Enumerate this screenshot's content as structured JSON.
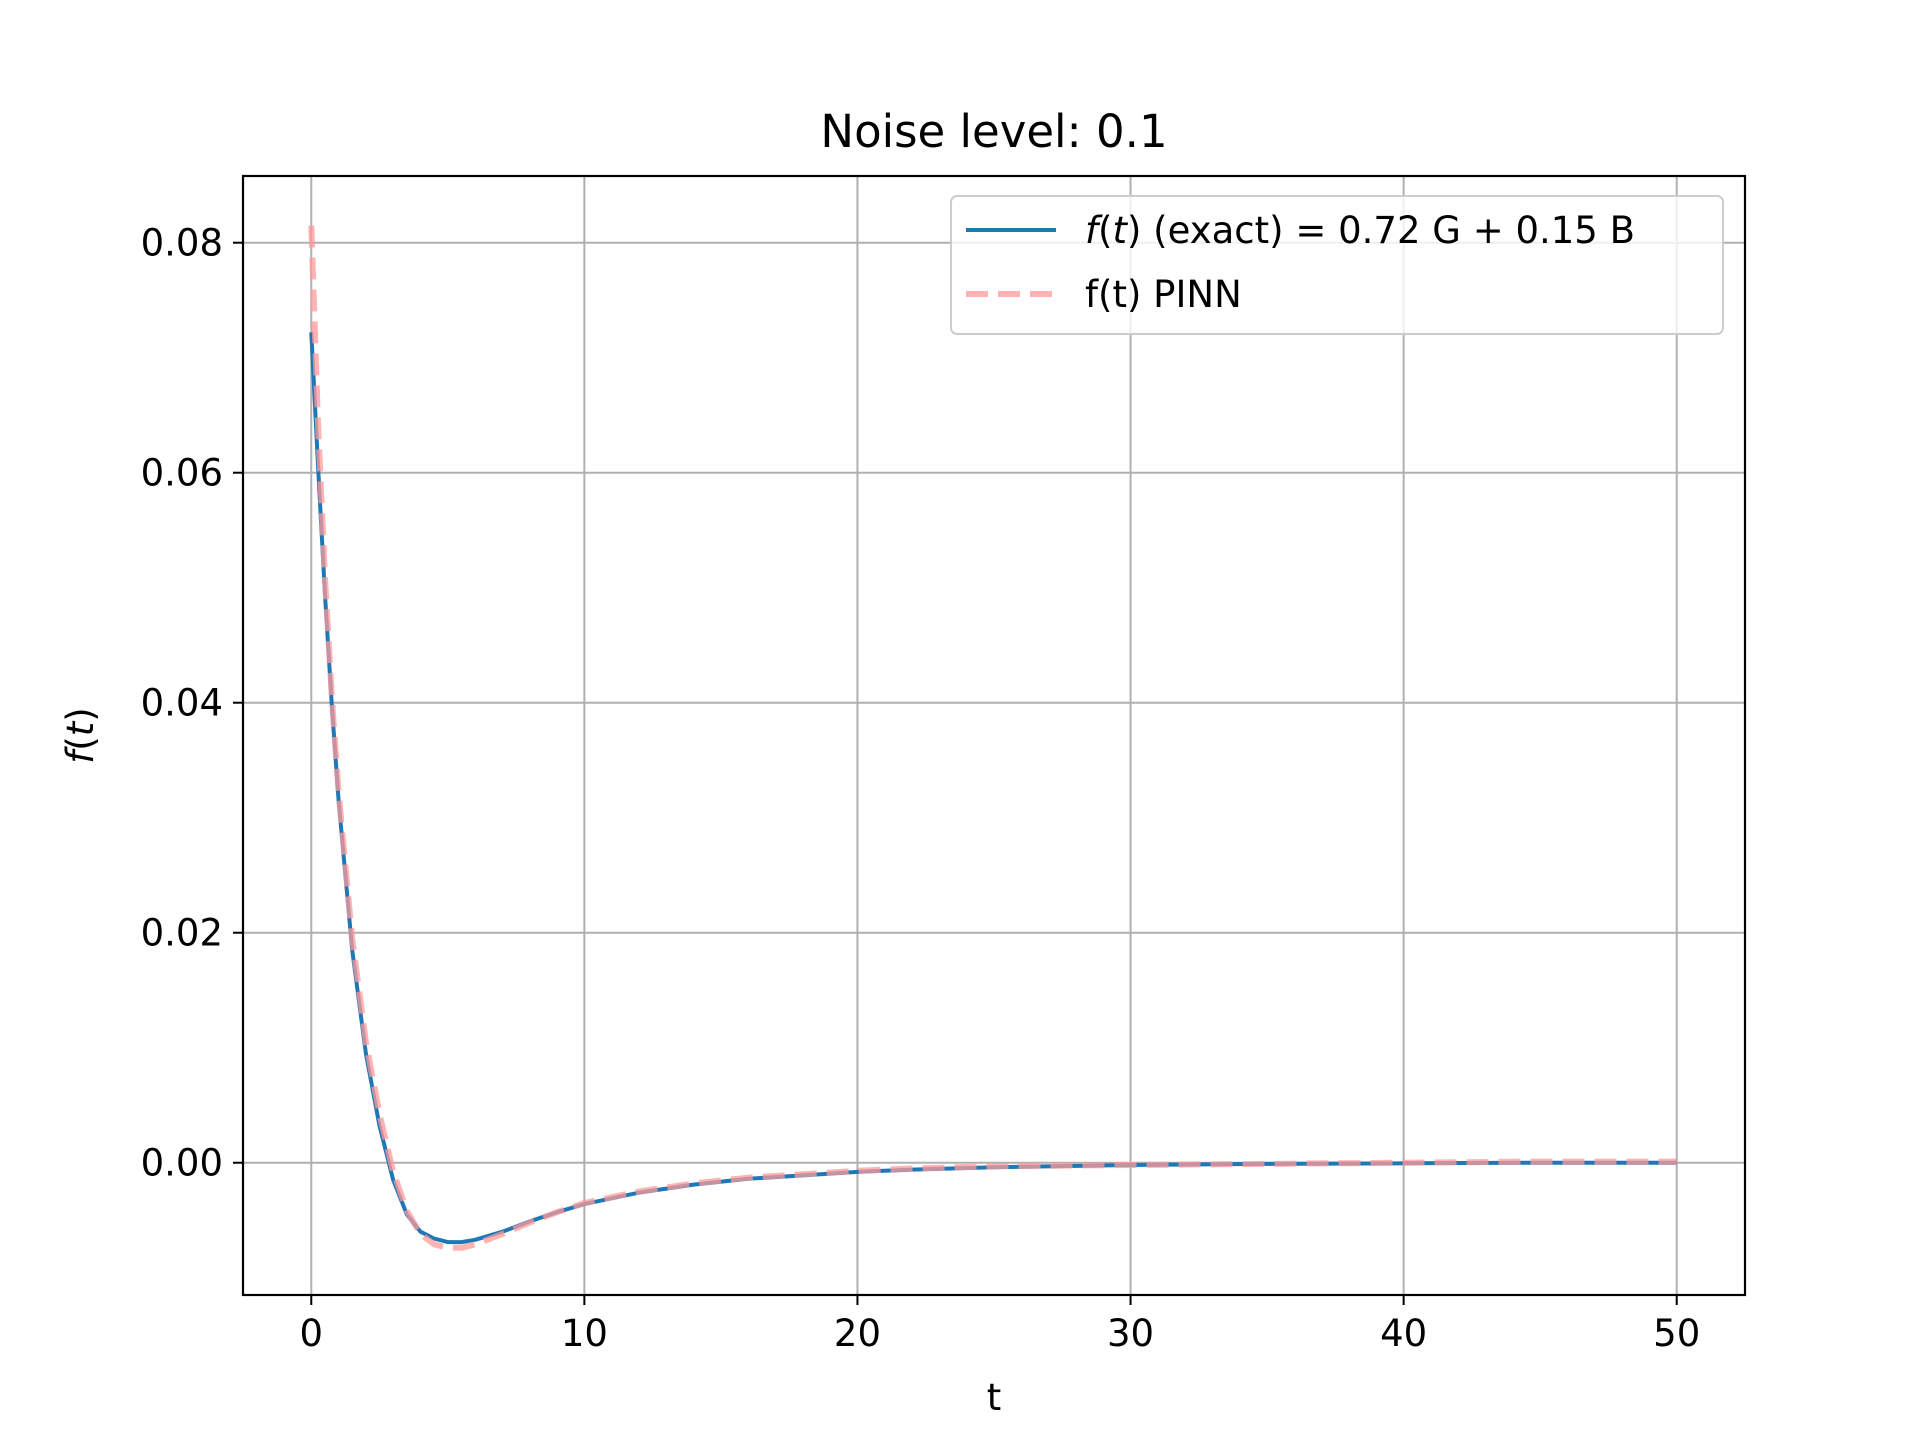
{
  "chart_data": {
    "type": "line",
    "title": "Noise level: 0.1",
    "xlabel": "t",
    "ylabel_prefix": "f",
    "ylabel_var": "t",
    "xlim": [
      -2.5,
      52.5
    ],
    "ylim": [
      -0.0115,
      0.0858
    ],
    "xticks": [
      0,
      10,
      20,
      30,
      40,
      50
    ],
    "xtick_labels": [
      "0",
      "10",
      "20",
      "30",
      "40",
      "50"
    ],
    "yticks": [
      0.0,
      0.02,
      0.04,
      0.06,
      0.08
    ],
    "ytick_labels": [
      "0.00",
      "0.02",
      "0.04",
      "0.06",
      "0.08"
    ],
    "grid": true,
    "legend_position": "top-right",
    "series": [
      {
        "name": "f(t) (exact) = 0.72 G + 0.15 B",
        "name_parts": {
          "f": "f",
          "t": "t",
          "rest": " (exact) = 0.72 G + 0.15 B"
        },
        "color": "#1f77b4",
        "style": "solid",
        "x": [
          0,
          0.25,
          0.5,
          0.75,
          1,
          1.5,
          2,
          2.5,
          3,
          3.5,
          4,
          4.5,
          5,
          5.5,
          6,
          7,
          8,
          9,
          10,
          12,
          14,
          16,
          18,
          20,
          22,
          25,
          30,
          35,
          40,
          45,
          50
        ],
        "y": [
          0.0722,
          0.0605,
          0.0495,
          0.0398,
          0.0315,
          0.0185,
          0.0095,
          0.0032,
          -0.0015,
          -0.0045,
          -0.006,
          -0.0066,
          -0.0069,
          -0.0069,
          -0.0067,
          -0.006,
          -0.0051,
          -0.0043,
          -0.0036,
          -0.0026,
          -0.0019,
          -0.0014,
          -0.0011,
          -0.0008,
          -0.0006,
          -0.0004,
          -0.0002,
          -0.0001,
          -5e-05,
          0.0,
          0.0
        ]
      },
      {
        "name": "f(t) PINN",
        "color": "#ff9999",
        "style": "dashed",
        "x": [
          0,
          0.25,
          0.5,
          0.75,
          1,
          1.5,
          2,
          2.5,
          3,
          3.5,
          4,
          4.5,
          5,
          5.5,
          6,
          7,
          8,
          9,
          10,
          12,
          14,
          16,
          18,
          20,
          22,
          25,
          30,
          35,
          40,
          45,
          50
        ],
        "y": [
          0.0815,
          0.064,
          0.051,
          0.0405,
          0.0322,
          0.0195,
          0.0105,
          0.0042,
          -0.0008,
          -0.0042,
          -0.0062,
          -0.0071,
          -0.0074,
          -0.0074,
          -0.0071,
          -0.0062,
          -0.0052,
          -0.0043,
          -0.0035,
          -0.0025,
          -0.0018,
          -0.0013,
          -0.001,
          -0.0007,
          -0.0005,
          -0.0003,
          -0.0002,
          -0.0001,
          0.0,
          0.0001,
          0.0001
        ]
      }
    ]
  }
}
